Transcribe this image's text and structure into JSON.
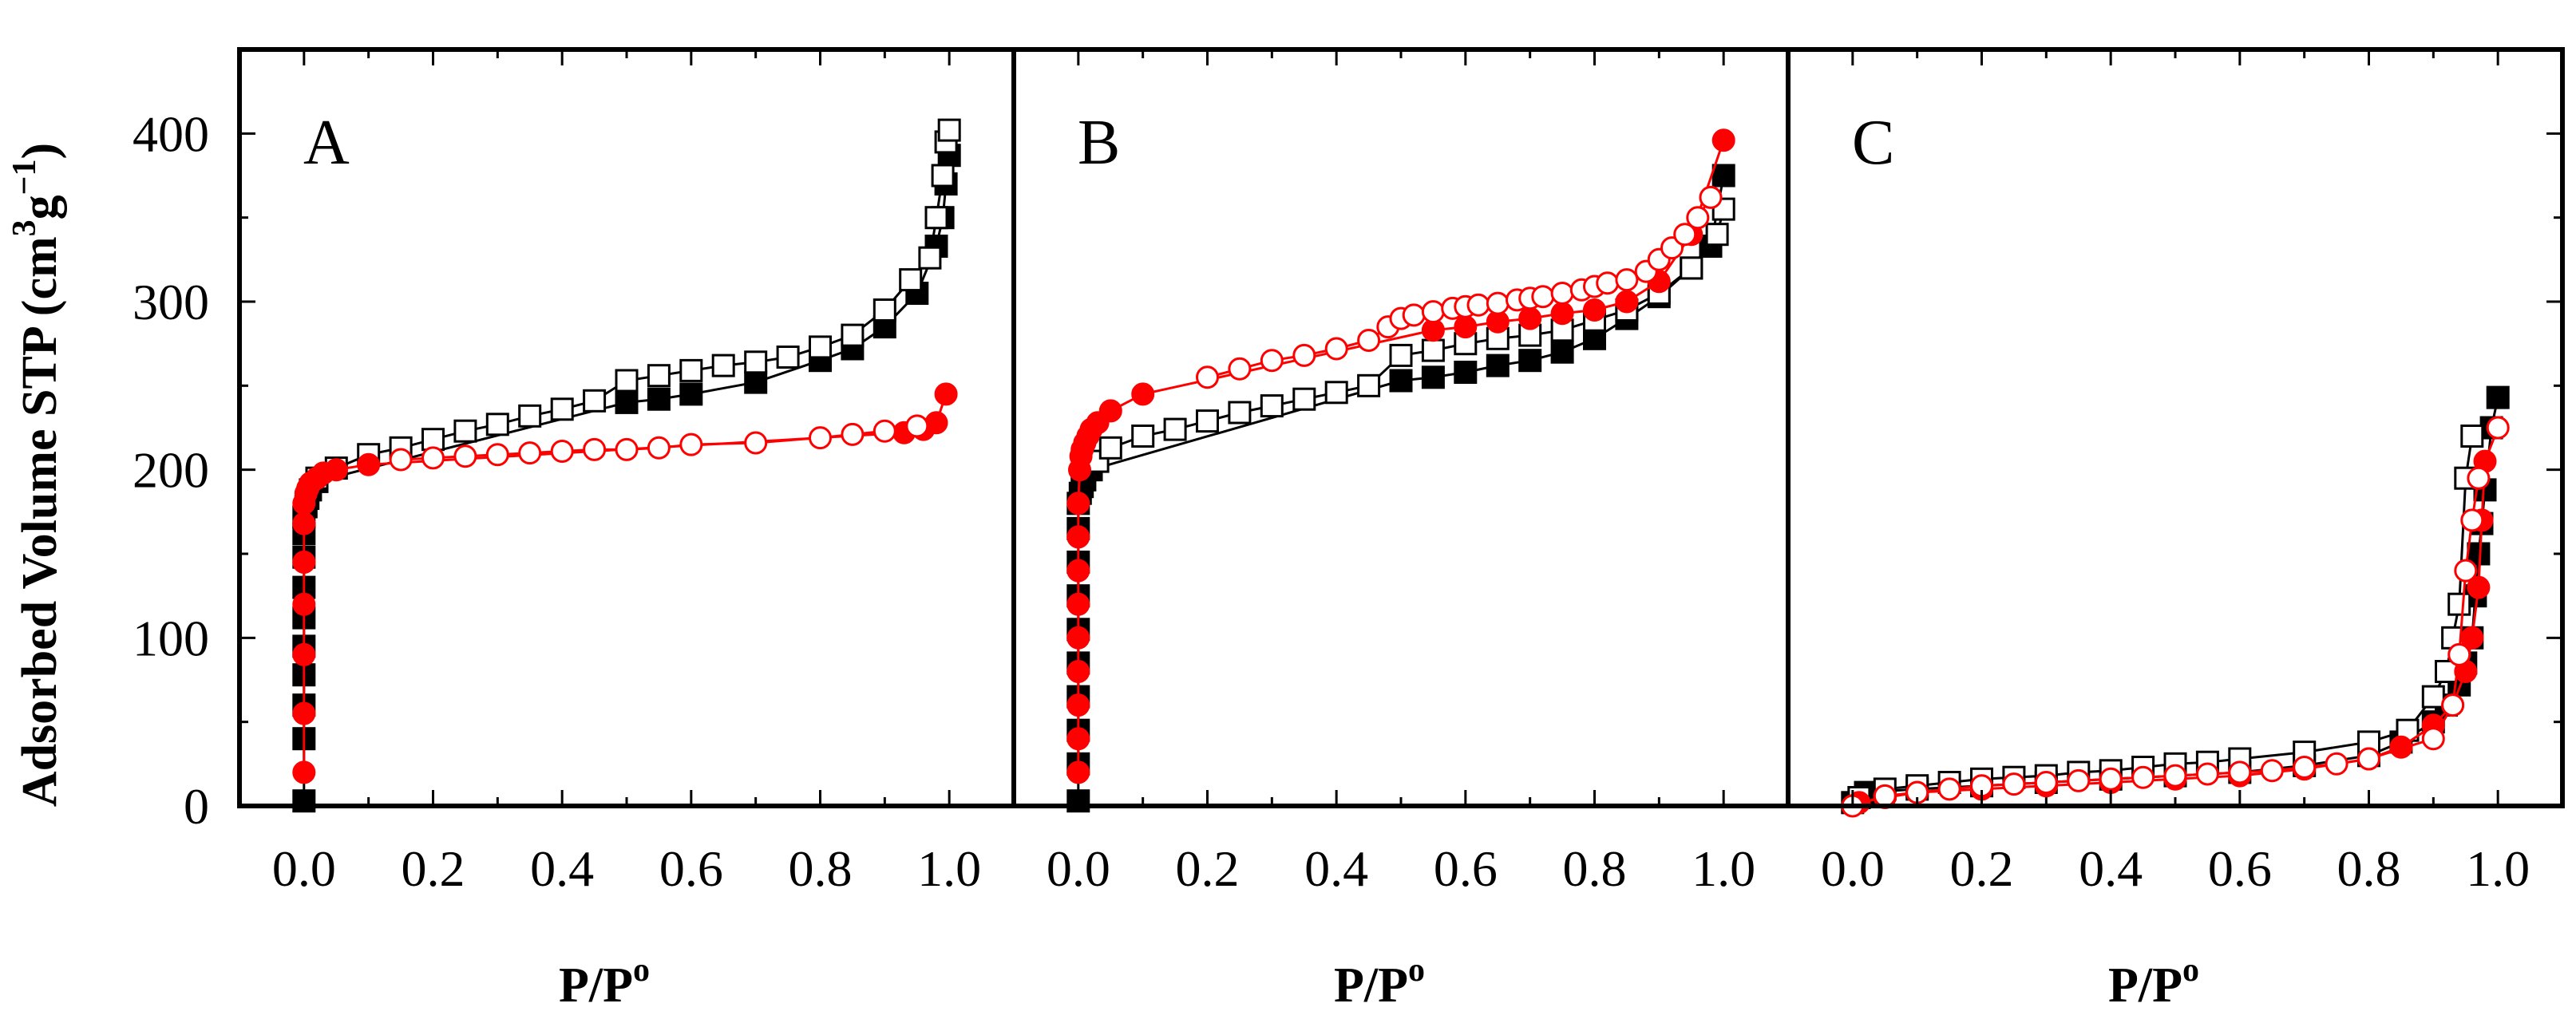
{
  "chart_data": {
    "type": "scatter",
    "ylabel": "Adsorbed Volume STP (cm",
    "ylabel_sup1": "3",
    "ylabel_mid": "g",
    "ylabel_sup2": "−1",
    "ylabel_end": ")",
    "xlabel": "P/P",
    "xlabel_sup": "o",
    "ylim": [
      0,
      450
    ],
    "xlim": [
      -0.1,
      1.1
    ],
    "y_ticks": [
      "0",
      "100",
      "200",
      "300",
      "400"
    ],
    "y_tick_values": [
      0,
      100,
      200,
      300,
      400
    ],
    "x_ticks": [
      "0.0",
      "0.2",
      "0.4",
      "0.6",
      "0.8",
      "1.0"
    ],
    "x_tick_values": [
      0,
      0.2,
      0.4,
      0.6,
      0.8,
      1.0
    ],
    "colors": {
      "red": "#ff0000",
      "black": "#000000"
    },
    "panels": [
      {
        "label": "A",
        "series": [
          {
            "name": "black-filled-square",
            "marker": "square",
            "filled": true,
            "color": "#000000",
            "x": [
              0,
              0,
              0,
              0,
              0,
              0,
              0,
              0,
              0,
              0,
              0.003,
              0.006,
              0.01,
              0.02,
              0.5,
              0.55,
              0.6,
              0.7,
              0.8,
              0.85,
              0.9,
              0.95,
              0.98,
              0.99,
              0.995,
              1.0
            ],
            "y": [
              3,
              40,
              60,
              78,
              95,
              112,
              130,
              148,
              162,
              172,
              178,
              183,
              188,
              193,
              240,
              242,
              245,
              252,
              265,
              272,
              285,
              305,
              333,
              350,
              370,
              387
            ]
          },
          {
            "name": "black-open-square",
            "marker": "square",
            "filled": false,
            "color": "#000000",
            "x": [
              0.02,
              0.05,
              0.1,
              0.15,
              0.2,
              0.25,
              0.3,
              0.35,
              0.4,
              0.45,
              0.5,
              0.55,
              0.6,
              0.65,
              0.7,
              0.75,
              0.8,
              0.85,
              0.9,
              0.94,
              0.97,
              0.98,
              0.99,
              0.995,
              1.0
            ],
            "y": [
              195,
              201,
              209,
              213,
              218,
              223,
              227,
              232,
              236,
              241,
              253,
              256,
              259,
              262,
              264,
              267,
              273,
              280,
              295,
              313,
              326,
              350,
              375,
              395,
              402
            ]
          },
          {
            "name": "red-filled-circle",
            "marker": "circle",
            "filled": true,
            "color": "#ff0000",
            "x": [
              0,
              0,
              0,
              0,
              0,
              0,
              0,
              0.003,
              0.006,
              0.01,
              0.02,
              0.03,
              0.05,
              0.1,
              0.93,
              0.96,
              0.98,
              0.995
            ],
            "y": [
              20,
              55,
              90,
              120,
              145,
              168,
              180,
              186,
              189,
              192,
              195,
              198,
              200,
              203,
              222,
              224,
              228,
              245
            ]
          },
          {
            "name": "red-open-circle",
            "marker": "circle",
            "filled": false,
            "color": "#ff0000",
            "x": [
              0.15,
              0.2,
              0.25,
              0.3,
              0.35,
              0.4,
              0.45,
              0.5,
              0.55,
              0.6,
              0.7,
              0.8,
              0.85,
              0.9,
              0.95
            ],
            "y": [
              206,
              207,
              208,
              209,
              210,
              211,
              212,
              212,
              213,
              215,
              216,
              219,
              221,
              223,
              226
            ]
          }
        ]
      },
      {
        "label": "B",
        "series": [
          {
            "name": "black-filled-square",
            "marker": "square",
            "filled": true,
            "color": "#000000",
            "x": [
              0,
              0,
              0,
              0,
              0,
              0,
              0,
              0,
              0,
              0,
              0.003,
              0.006,
              0.01,
              0.02,
              0.5,
              0.55,
              0.6,
              0.65,
              0.7,
              0.75,
              0.8,
              0.85,
              0.9,
              0.95,
              0.98,
              1.0
            ],
            "y": [
              3,
              25,
              45,
              65,
              85,
              105,
              125,
              145,
              165,
              180,
              186,
              190,
              194,
              200,
              253,
              255,
              258,
              262,
              265,
              270,
              278,
              290,
              303,
              320,
              333,
              375
            ]
          },
          {
            "name": "black-open-square",
            "marker": "square",
            "filled": false,
            "color": "#000000",
            "x": [
              0.03,
              0.05,
              0.1,
              0.15,
              0.2,
              0.25,
              0.3,
              0.35,
              0.4,
              0.45,
              0.5,
              0.55,
              0.6,
              0.65,
              0.7,
              0.75,
              0.8,
              0.85,
              0.9,
              0.95,
              0.99,
              1.0
            ],
            "y": [
              205,
              213,
              220,
              224,
              229,
              234,
              238,
              242,
              246,
              250,
              268,
              271,
              275,
              278,
              280,
              283,
              289,
              295,
              305,
              320,
              340,
              355
            ]
          },
          {
            "name": "red-filled-circle",
            "marker": "circle",
            "filled": true,
            "color": "#ff0000",
            "x": [
              0,
              0,
              0,
              0,
              0,
              0,
              0,
              0,
              0,
              0.002,
              0.004,
              0.006,
              0.01,
              0.015,
              0.02,
              0.03,
              0.05,
              0.1,
              0.55,
              0.6,
              0.65,
              0.7,
              0.75,
              0.8,
              0.85,
              0.9,
              0.95,
              1.0
            ],
            "y": [
              20,
              40,
              60,
              80,
              100,
              120,
              140,
              160,
              180,
              200,
              208,
              212,
              216,
              220,
              224,
              228,
              235,
              245,
              283,
              285,
              288,
              290,
              293,
              295,
              300,
              312,
              340,
              396
            ]
          },
          {
            "name": "red-open-circle",
            "marker": "circle",
            "filled": false,
            "color": "#ff0000",
            "x": [
              0.2,
              0.25,
              0.3,
              0.35,
              0.4,
              0.45,
              0.48,
              0.5,
              0.52,
              0.55,
              0.58,
              0.6,
              0.62,
              0.65,
              0.68,
              0.7,
              0.72,
              0.75,
              0.78,
              0.8,
              0.82,
              0.85,
              0.88,
              0.9,
              0.92,
              0.94,
              0.96,
              0.98
            ],
            "y": [
              255,
              260,
              265,
              268,
              272,
              277,
              285,
              290,
              292,
              294,
              296,
              297,
              298,
              299,
              301,
              302,
              303,
              305,
              307,
              309,
              311,
              313,
              318,
              325,
              332,
              340,
              350,
              362
            ]
          }
        ]
      },
      {
        "label": "C",
        "series": [
          {
            "name": "black-filled-square",
            "marker": "square",
            "filled": true,
            "color": "#000000",
            "x": [
              0,
              0.01,
              0.02,
              0.1,
              0.2,
              0.3,
              0.4,
              0.5,
              0.6,
              0.7,
              0.8,
              0.85,
              0.9,
              0.92,
              0.94,
              0.95,
              0.96,
              0.965,
              0.97,
              0.975,
              0.98,
              0.99,
              1.0
            ],
            "y": [
              2,
              5,
              8,
              10,
              12,
              14,
              16,
              18,
              20,
              24,
              30,
              38,
              50,
              60,
              72,
              85,
              100,
              125,
              150,
              168,
              188,
              225,
              243
            ]
          },
          {
            "name": "black-open-square",
            "marker": "square",
            "filled": false,
            "color": "#000000",
            "x": [
              0.01,
              0.05,
              0.1,
              0.15,
              0.2,
              0.25,
              0.3,
              0.35,
              0.4,
              0.45,
              0.5,
              0.55,
              0.6,
              0.7,
              0.8,
              0.86,
              0.9,
              0.92,
              0.93,
              0.94,
              0.95,
              0.96
            ],
            "y": [
              5,
              10,
              12,
              14,
              16,
              17,
              18,
              20,
              21,
              23,
              25,
              26,
              28,
              32,
              38,
              45,
              65,
              80,
              100,
              120,
              195,
              220
            ]
          },
          {
            "name": "red-filled-circle",
            "marker": "circle",
            "filled": true,
            "color": "#ff0000",
            "x": [
              0.01,
              0.05,
              0.1,
              0.2,
              0.3,
              0.4,
              0.5,
              0.6,
              0.7,
              0.8,
              0.85,
              0.9,
              0.93,
              0.95,
              0.96,
              0.97,
              0.975,
              0.98
            ],
            "y": [
              2,
              5,
              8,
              10,
              12,
              14,
              16,
              18,
              22,
              28,
              35,
              48,
              60,
              80,
              100,
              130,
              170,
              205
            ]
          },
          {
            "name": "red-open-circle",
            "marker": "circle",
            "filled": false,
            "color": "#ff0000",
            "x": [
              0.0,
              0.05,
              0.1,
              0.15,
              0.2,
              0.25,
              0.3,
              0.35,
              0.4,
              0.45,
              0.5,
              0.55,
              0.6,
              0.65,
              0.7,
              0.75,
              0.8,
              0.9,
              0.93,
              0.94,
              0.95,
              0.96,
              0.97,
              1.0
            ],
            "y": [
              0,
              6,
              8,
              10,
              12,
              13,
              14,
              15,
              16,
              17,
              18,
              19,
              20,
              21,
              23,
              25,
              28,
              40,
              60,
              90,
              140,
              170,
              195,
              225
            ]
          }
        ]
      }
    ]
  }
}
